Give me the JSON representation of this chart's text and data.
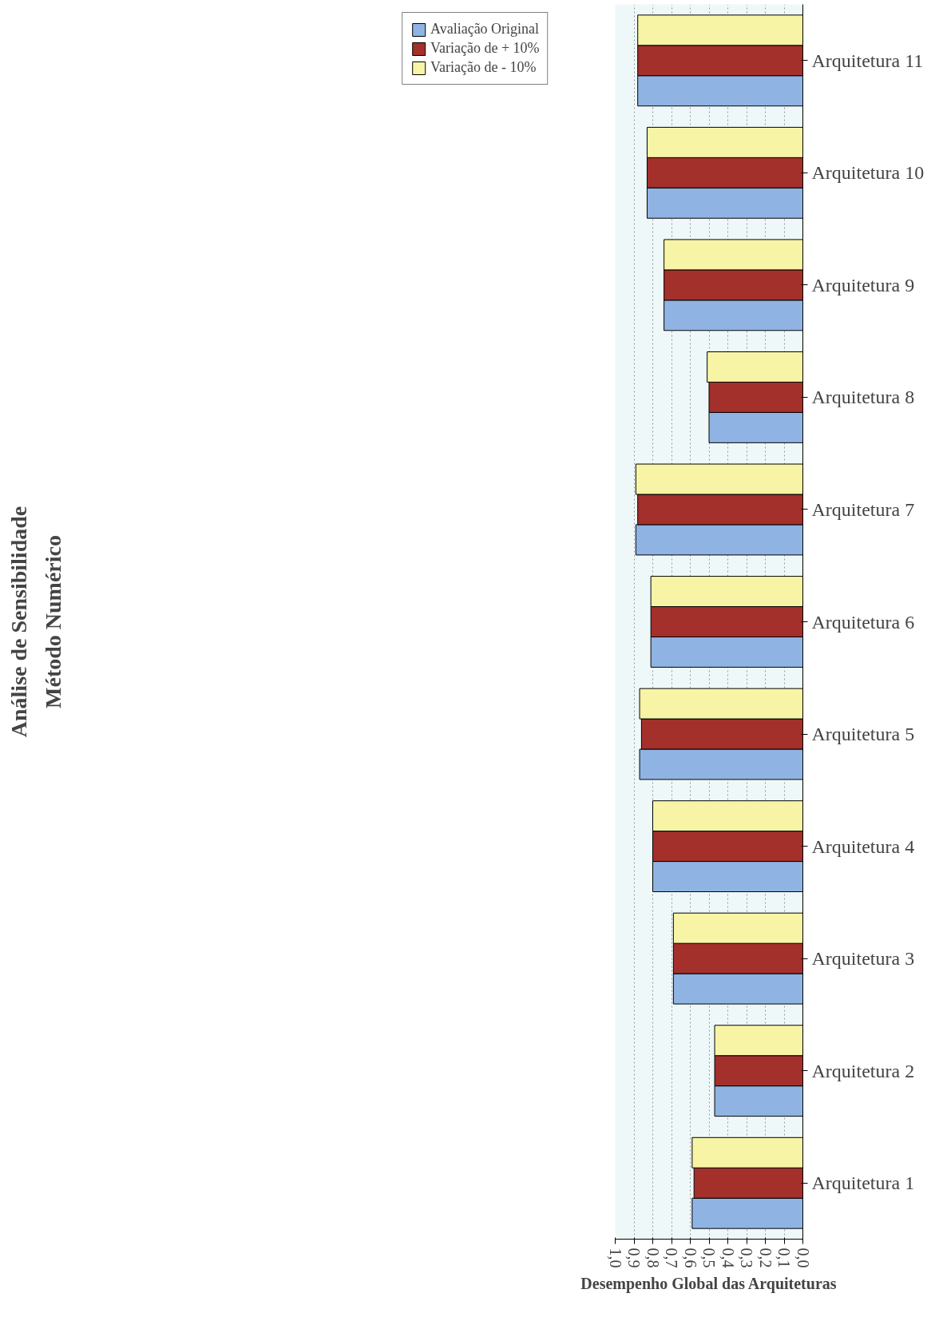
{
  "chart_data": {
    "type": "bar",
    "orientation": "horizontal",
    "title": "Análise de Sensibilidade",
    "subtitle": "Método Numérico",
    "xlabel": "Desempenho Global das Arquiteturas",
    "categories": [
      "Arquitetura 11",
      "Arquitetura 10",
      "Arquitetura 9",
      "Arquitetura 8",
      "Arquitetura 7",
      "Arquitetura 6",
      "Arquitetura 5",
      "Arquitetura 4",
      "Arquitetura 3",
      "Arquitetura 2",
      "Arquitetura 1"
    ],
    "series": [
      {
        "name": "Avaliação Original",
        "color": "#8fb4e3",
        "values": [
          0.88,
          0.83,
          0.74,
          0.5,
          0.89,
          0.81,
          0.87,
          0.8,
          0.69,
          0.47,
          0.59
        ]
      },
      {
        "name": "Variação de + 10%",
        "color": "#a3302b",
        "values": [
          0.88,
          0.83,
          0.74,
          0.5,
          0.88,
          0.81,
          0.86,
          0.8,
          0.69,
          0.47,
          0.58
        ]
      },
      {
        "name": "Variação de - 10%",
        "color": "#f7f4a6",
        "values": [
          0.88,
          0.83,
          0.74,
          0.51,
          0.89,
          0.81,
          0.87,
          0.8,
          0.69,
          0.47,
          0.59
        ]
      }
    ],
    "xlim": [
      1.0,
      0.0
    ],
    "xticks": [
      {
        "value": 1.0,
        "label": "1,0"
      },
      {
        "value": 0.9,
        "label": "0,9"
      },
      {
        "value": 0.8,
        "label": "0,8"
      },
      {
        "value": 0.7,
        "label": "0,7"
      },
      {
        "value": 0.6,
        "label": "0,6"
      },
      {
        "value": 0.5,
        "label": "0,5"
      },
      {
        "value": 0.4,
        "label": "0,4"
      },
      {
        "value": 0.3,
        "label": "0,3"
      },
      {
        "value": 0.2,
        "label": "0,2"
      },
      {
        "value": 0.1,
        "label": "0,1"
      },
      {
        "value": 0.0,
        "label": "0,0"
      }
    ],
    "grid": "x",
    "legend": "left"
  }
}
